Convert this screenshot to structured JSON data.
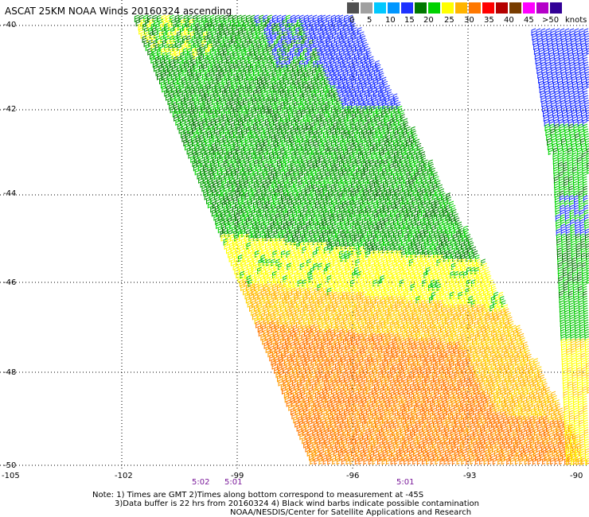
{
  "title": "ASCAT 25KM NOAA Winds 20160324 ascending",
  "color_scale": {
    "colors": [
      "#505050",
      "#a0a0a0",
      "#00c8ff",
      "#0096ff",
      "#1e32ff",
      "#007800",
      "#00d200",
      "#ffff00",
      "#ffb400",
      "#ff7800",
      "#ff0000",
      "#b40000",
      "#783c00",
      "#ff00ff",
      "#b400c8",
      "#320096"
    ],
    "labels": [
      "0",
      "5",
      "10",
      "15",
      "20",
      "25",
      "30",
      "35",
      "40",
      "45",
      ">50"
    ],
    "unit": "knots"
  },
  "lat_labels": [
    "-40",
    "-42",
    "-44",
    "-46",
    "-48",
    "-50"
  ],
  "lon_labels": [
    "-105",
    "-102",
    "-99",
    "-96",
    "-93",
    "-90"
  ],
  "times": [
    "5:02",
    "5:01",
    "5:01"
  ],
  "footer": {
    "line1": "Note: 1) Times are GMT 2)Times along bottom correspond to measurement at -45S",
    "line2": "3)Data buffer is 22 hrs from 20160324 4) Black wind barbs indicate possible contamination",
    "line3": "NOAA/NESDIS/Center for Satellite Applications and Research"
  }
}
